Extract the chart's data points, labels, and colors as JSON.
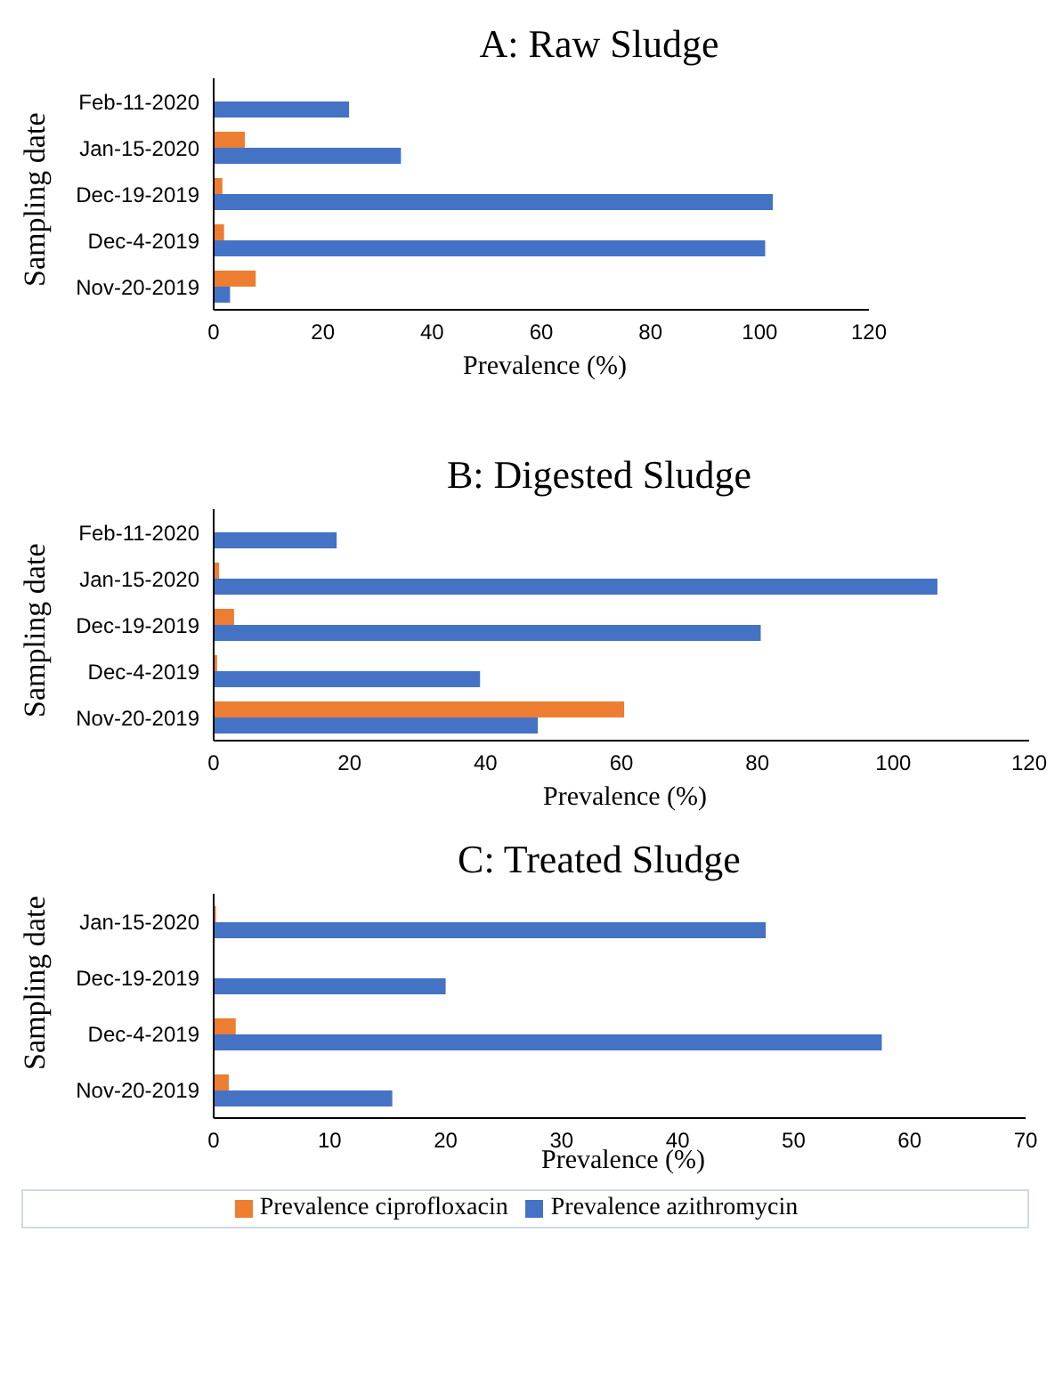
{
  "chart_data": [
    {
      "type": "bar",
      "orientation": "horizontal",
      "title": "A: Raw Sludge",
      "xlabel": "Prevalence (%)",
      "ylabel": "Sampling date",
      "categories": [
        "Feb-11-2020",
        "Jan-15-2020",
        "Dec-19-2019",
        "Dec-4-2019",
        "Nov-20-2019"
      ],
      "series": [
        {
          "color": "#ed7d31",
          "values": [
            null,
            5.7,
            1.6,
            1.9,
            7.7
          ]
        },
        {
          "color": "#4472c4",
          "values": [
            24.8,
            34.3,
            102.4,
            101,
            3
          ]
        }
      ],
      "xlim": [
        0,
        120
      ],
      "xticks": [
        0,
        20,
        40,
        60,
        80,
        100,
        120
      ],
      "grid": false,
      "legend": false
    },
    {
      "type": "bar",
      "orientation": "horizontal",
      "title": "B: Digested Sludge",
      "xlabel": "Prevalence (%)",
      "ylabel": "Sampling date",
      "categories": [
        "Feb-11-2020",
        "Jan-15-2020",
        "Dec-19-2019",
        "Dec-4-2019",
        "Nov-20-2019"
      ],
      "series": [
        {
          "color": "#ed7d31",
          "values": [
            null,
            0.8,
            3,
            0.5,
            60.4
          ]
        },
        {
          "color": "#4472c4",
          "values": [
            18.1,
            106.5,
            80.5,
            39.2,
            47.7
          ]
        }
      ],
      "xlim": [
        0,
        120
      ],
      "xticks": [
        0,
        20,
        40,
        60,
        80,
        100,
        120
      ],
      "grid": false,
      "legend": false
    },
    {
      "type": "bar",
      "orientation": "horizontal",
      "title": "C: Treated Sludge",
      "xlabel": "Prevalence (%)",
      "ylabel": "Sampling date",
      "categories": [
        "Jan-15-2020",
        "Dec-19-2019",
        "Dec-4-2019",
        "Nov-20-2019"
      ],
      "series": [
        {
          "name": "Prevalence ciprofloxacin",
          "color": "#ed7d31",
          "values": [
            0.2,
            null,
            1.9,
            1.3
          ]
        },
        {
          "name": "Prevalence azithromycin",
          "color": "#4472c4",
          "values": [
            47.6,
            20,
            57.6,
            15.4
          ]
        }
      ],
      "xlim": [
        0,
        70
      ],
      "xticks": [
        0,
        10,
        20,
        30,
        40,
        50,
        60,
        70
      ],
      "grid": false,
      "legend": "bottom"
    }
  ]
}
